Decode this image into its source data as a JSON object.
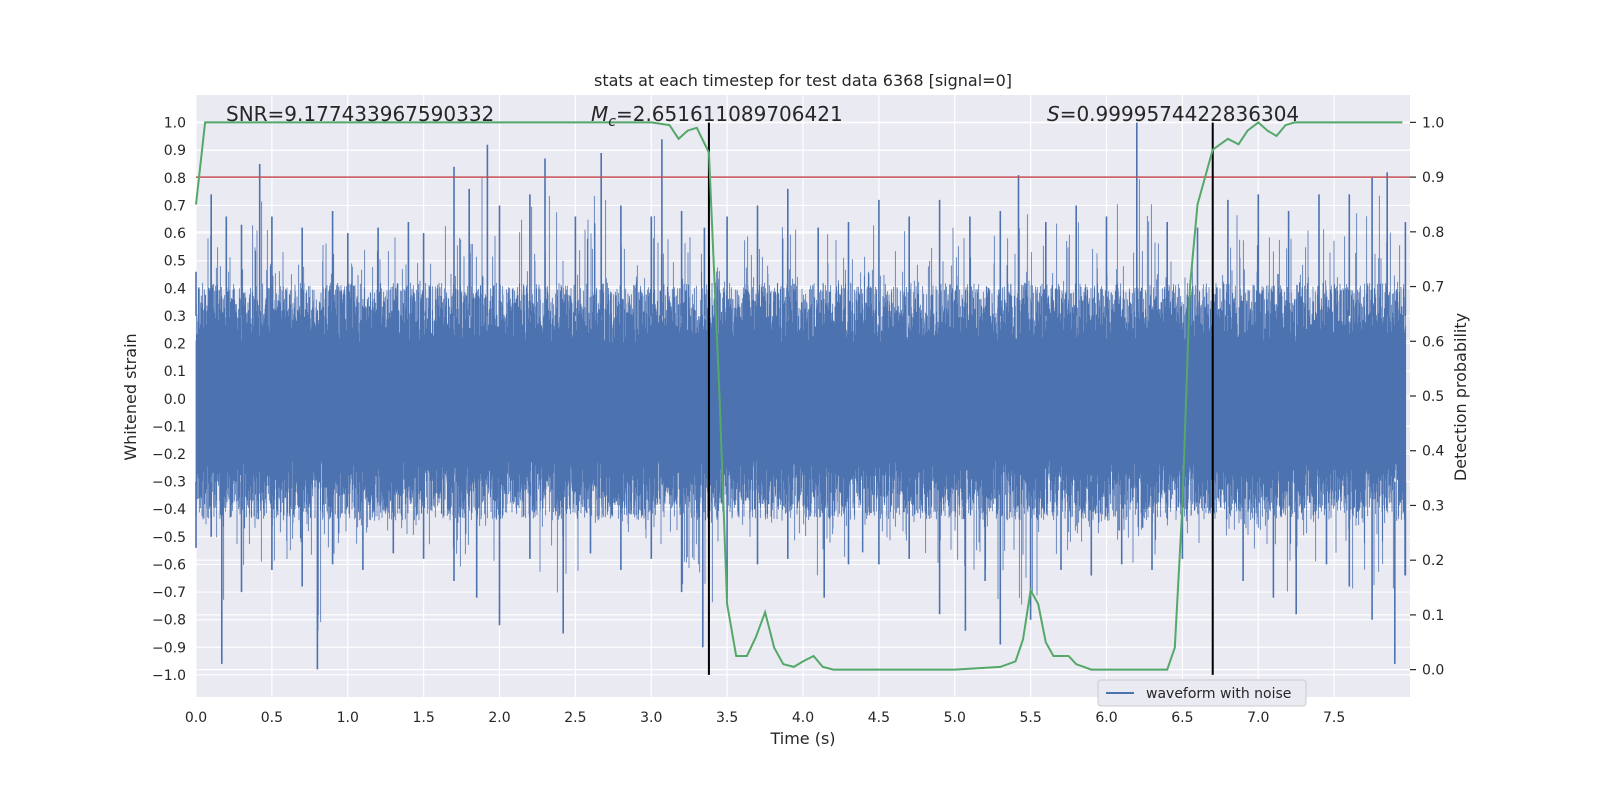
{
  "chart_data": {
    "type": "line",
    "title": "stats at each timestep for test data 6368 [signal=0]",
    "xlabel": "Time (s)",
    "ylabel_left": "Whitened strain",
    "ylabel_right": "Detection probability",
    "xlim": [
      0.0,
      8.0
    ],
    "ylim_left": [
      -1.08,
      1.1
    ],
    "ylim_right": [
      -0.05,
      1.05
    ],
    "x_ticks": [
      "0.0",
      "0.5",
      "1.0",
      "1.5",
      "2.0",
      "2.5",
      "3.0",
      "3.5",
      "4.0",
      "4.5",
      "5.0",
      "5.5",
      "6.0",
      "6.5",
      "7.0",
      "7.5"
    ],
    "x_tick_values": [
      0.0,
      0.5,
      1.0,
      1.5,
      2.0,
      2.5,
      3.0,
      3.5,
      4.0,
      4.5,
      5.0,
      5.5,
      6.0,
      6.5,
      7.0,
      7.5
    ],
    "y_ticks_left": [
      "1.0",
      "0.9",
      "0.8",
      "0.7",
      "0.6",
      "0.5",
      "0.4",
      "0.3",
      "0.2",
      "0.1",
      "0.0",
      "−0.1",
      "−0.2",
      "−0.3",
      "−0.4",
      "−0.5",
      "−0.6",
      "−0.7",
      "−0.8",
      "−0.9",
      "−1.0"
    ],
    "y_tick_values_left": [
      1.0,
      0.9,
      0.8,
      0.7,
      0.6,
      0.5,
      0.4,
      0.3,
      0.2,
      0.1,
      0.0,
      -0.1,
      -0.2,
      -0.3,
      -0.4,
      -0.5,
      -0.6,
      -0.7,
      -0.8,
      -0.9,
      -1.0
    ],
    "y_ticks_right": [
      "1.0",
      "0.9",
      "0.8",
      "0.7",
      "0.6",
      "0.5",
      "0.4",
      "0.3",
      "0.2",
      "0.1",
      "0.0"
    ],
    "y_tick_values_right": [
      1.0,
      0.9,
      0.8,
      0.7,
      0.6,
      0.5,
      0.4,
      0.3,
      0.2,
      0.1,
      0.0
    ],
    "annotations": {
      "snr": "SNR=9.177433967590332",
      "mc_symbol": "M",
      "mc_sub": "c",
      "mc_value": "=2.651611089706421",
      "s_symbol": "S",
      "s_value": "=0.9999574422836304"
    },
    "legend": {
      "label": "waveform with noise",
      "placement": "lower-right"
    },
    "threshold_right": 0.9,
    "vertical_lines_x": [
      3.38,
      6.7
    ],
    "series": [
      {
        "name": "waveform with noise",
        "axis": "left",
        "color": "#4c72b0",
        "envelope_upper": [
          [
            0.0,
            0.46
          ],
          [
            0.1,
            0.74
          ],
          [
            0.2,
            0.66
          ],
          [
            0.3,
            0.63
          ],
          [
            0.42,
            0.85
          ],
          [
            0.5,
            0.66
          ],
          [
            0.7,
            0.62
          ],
          [
            0.9,
            0.68
          ],
          [
            1.0,
            0.6
          ],
          [
            1.2,
            0.62
          ],
          [
            1.4,
            0.64
          ],
          [
            1.5,
            0.6
          ],
          [
            1.7,
            0.84
          ],
          [
            1.8,
            0.76
          ],
          [
            1.92,
            0.92
          ],
          [
            2.0,
            0.7
          ],
          [
            2.2,
            0.74
          ],
          [
            2.3,
            0.87
          ],
          [
            2.5,
            0.66
          ],
          [
            2.67,
            0.89
          ],
          [
            2.8,
            0.7
          ],
          [
            3.0,
            0.66
          ],
          [
            3.07,
            0.94
          ],
          [
            3.2,
            0.68
          ],
          [
            3.35,
            0.62
          ],
          [
            3.5,
            0.66
          ],
          [
            3.7,
            0.7
          ],
          [
            3.9,
            0.76
          ],
          [
            4.1,
            0.62
          ],
          [
            4.3,
            0.64
          ],
          [
            4.5,
            0.72
          ],
          [
            4.7,
            0.66
          ],
          [
            4.9,
            0.72
          ],
          [
            5.1,
            0.66
          ],
          [
            5.3,
            0.68
          ],
          [
            5.42,
            0.81
          ],
          [
            5.6,
            0.64
          ],
          [
            5.8,
            0.7
          ],
          [
            6.0,
            0.66
          ],
          [
            6.2,
            1.0
          ],
          [
            6.4,
            0.64
          ],
          [
            6.6,
            0.62
          ],
          [
            6.8,
            0.72
          ],
          [
            7.0,
            0.74
          ],
          [
            7.2,
            0.68
          ],
          [
            7.4,
            0.74
          ],
          [
            7.6,
            0.74
          ],
          [
            7.75,
            0.8
          ],
          [
            7.85,
            0.82
          ],
          [
            7.97,
            0.64
          ]
        ],
        "envelope_lower": [
          [
            0.0,
            -0.54
          ],
          [
            0.1,
            -0.5
          ],
          [
            0.17,
            -0.96
          ],
          [
            0.3,
            -0.7
          ],
          [
            0.5,
            -0.62
          ],
          [
            0.7,
            -0.68
          ],
          [
            0.8,
            -0.98
          ],
          [
            0.9,
            -0.6
          ],
          [
            1.1,
            -0.62
          ],
          [
            1.3,
            -0.56
          ],
          [
            1.5,
            -0.58
          ],
          [
            1.7,
            -0.66
          ],
          [
            1.85,
            -0.72
          ],
          [
            2.0,
            -0.82
          ],
          [
            2.2,
            -0.58
          ],
          [
            2.42,
            -0.85
          ],
          [
            2.6,
            -0.56
          ],
          [
            2.8,
            -0.62
          ],
          [
            3.0,
            -0.58
          ],
          [
            3.2,
            -0.7
          ],
          [
            3.34,
            -0.9
          ],
          [
            3.5,
            -0.72
          ],
          [
            3.7,
            -0.6
          ],
          [
            3.9,
            -0.58
          ],
          [
            4.14,
            -0.72
          ],
          [
            4.3,
            -0.6
          ],
          [
            4.5,
            -0.6
          ],
          [
            4.7,
            -0.58
          ],
          [
            4.9,
            -0.78
          ],
          [
            5.07,
            -0.84
          ],
          [
            5.2,
            -0.66
          ],
          [
            5.3,
            -0.89
          ],
          [
            5.5,
            -0.8
          ],
          [
            5.7,
            -0.62
          ],
          [
            5.9,
            -0.64
          ],
          [
            6.1,
            -0.6
          ],
          [
            6.3,
            -0.62
          ],
          [
            6.5,
            -0.58
          ],
          [
            6.7,
            -0.6
          ],
          [
            6.9,
            -0.66
          ],
          [
            7.1,
            -0.72
          ],
          [
            7.25,
            -0.78
          ],
          [
            7.45,
            -0.6
          ],
          [
            7.6,
            -0.68
          ],
          [
            7.75,
            -0.8
          ],
          [
            7.9,
            -0.96
          ],
          [
            7.97,
            -0.64
          ]
        ]
      },
      {
        "name": "",
        "axis": "right",
        "color": "#55a868",
        "x": [
          0.0,
          0.06,
          0.1,
          0.5,
          1.0,
          1.5,
          2.0,
          2.5,
          3.0,
          3.12,
          3.18,
          3.24,
          3.3,
          3.38,
          3.45,
          3.5,
          3.56,
          3.63,
          3.69,
          3.75,
          3.81,
          3.87,
          3.94,
          4.0,
          4.07,
          4.13,
          4.2,
          4.5,
          5.0,
          5.3,
          5.4,
          5.45,
          5.5,
          5.55,
          5.6,
          5.65,
          5.7,
          5.75,
          5.8,
          5.9,
          6.0,
          6.4,
          6.45,
          6.5,
          6.55,
          6.6,
          6.7,
          6.8,
          6.87,
          6.93,
          7.0,
          7.06,
          7.12,
          7.18,
          7.24,
          7.3,
          7.5,
          7.95
        ],
        "y": [
          0.85,
          1.0,
          1.0,
          1.0,
          1.0,
          1.0,
          1.0,
          1.0,
          1.0,
          0.995,
          0.97,
          0.985,
          0.99,
          0.945,
          0.5,
          0.12,
          0.025,
          0.025,
          0.06,
          0.105,
          0.04,
          0.01,
          0.005,
          0.015,
          0.025,
          0.005,
          0.0,
          0.0,
          0.0,
          0.005,
          0.015,
          0.055,
          0.145,
          0.12,
          0.05,
          0.025,
          0.025,
          0.025,
          0.01,
          0.0,
          0.0,
          0.0,
          0.04,
          0.3,
          0.7,
          0.85,
          0.95,
          0.97,
          0.96,
          0.985,
          1.0,
          0.985,
          0.975,
          0.995,
          1.0,
          1.0,
          1.0,
          1.0
        ]
      }
    ]
  }
}
